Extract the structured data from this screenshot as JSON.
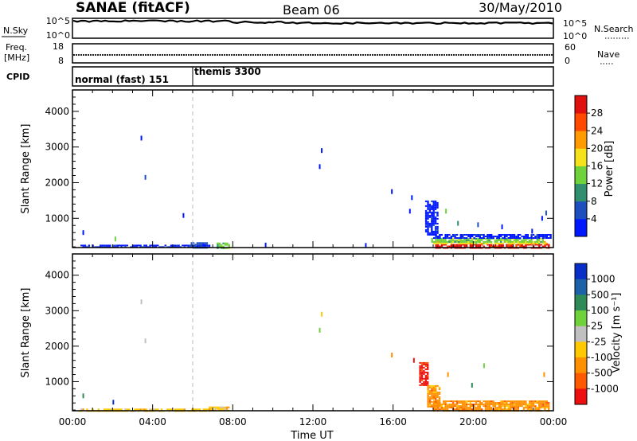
{
  "header": {
    "station": "SANAE (fitACF)",
    "beam": "Beam 06",
    "date": "30/May/2010"
  },
  "panels": {
    "noise": {
      "left_label": "N.Sky",
      "left_ticks": [
        "10^5",
        "10^0"
      ],
      "right_label": "N.Search",
      "right_ticks": [
        "10^5",
        "10^0"
      ]
    },
    "freq": {
      "left_label_1": "Freq.",
      "left_label_2": "[MHz]",
      "left_ticks": [
        "18",
        "8"
      ],
      "right_label": "Nave",
      "right_ticks": [
        "60",
        "0"
      ]
    },
    "cpid": {
      "label": "CPID",
      "segments": [
        {
          "start": 0.0,
          "name": "normal (fast) 151"
        },
        {
          "start": 6.0,
          "name": "themis 3300"
        }
      ]
    }
  },
  "chart_data": [
    {
      "type": "heatmap",
      "panel": "power",
      "ylabel": "Slant Range [km]",
      "xlabel": "",
      "xlim": [
        0,
        24
      ],
      "ylim": [
        180,
        4600
      ],
      "y_ticks": [
        "1000",
        "2000",
        "3000",
        "4000"
      ],
      "colorbar": {
        "label": "Power [dB]",
        "ticks": [
          "4",
          "8",
          "12",
          "16",
          "20",
          "24",
          "28"
        ],
        "colors": [
          "#0018ff",
          "#1f4fbf",
          "#2f8f6f",
          "#6fd23a",
          "#f5e21a",
          "#ff9a00",
          "#ff4a00",
          "#e01010"
        ]
      },
      "regions": [
        {
          "x0": 18.1,
          "x1": 23.8,
          "y0": 180,
          "y1": 280,
          "level": 7
        },
        {
          "x0": 18.0,
          "x1": 23.7,
          "y0": 280,
          "y1": 360,
          "level": 4
        },
        {
          "x0": 17.9,
          "x1": 23.5,
          "y0": 360,
          "y1": 450,
          "level": 3
        },
        {
          "x0": 18.0,
          "x1": 23.9,
          "y0": 450,
          "y1": 560,
          "level": 0
        },
        {
          "x0": 17.6,
          "x1": 18.2,
          "y0": 560,
          "y1": 1500,
          "level": 0
        },
        {
          "x0": 0.3,
          "x1": 6.8,
          "y0": 180,
          "y1": 260,
          "level": 0
        },
        {
          "x0": 5.9,
          "x1": 6.7,
          "y0": 180,
          "y1": 330,
          "level": 1
        },
        {
          "x0": 7.2,
          "x1": 7.8,
          "y0": 180,
          "y1": 320,
          "level": 3
        }
      ],
      "points": [
        [
          0.5,
          600,
          0
        ],
        [
          2.1,
          420,
          3
        ],
        [
          3.4,
          3250,
          0
        ],
        [
          3.6,
          2150,
          1
        ],
        [
          5.5,
          1080,
          0
        ],
        [
          9.6,
          250,
          0
        ],
        [
          12.4,
          2900,
          0
        ],
        [
          12.3,
          2450,
          0
        ],
        [
          14.6,
          240,
          0
        ],
        [
          15.9,
          1750,
          0
        ],
        [
          16.9,
          1580,
          0
        ],
        [
          16.8,
          1200,
          0
        ],
        [
          18.6,
          1200,
          3
        ],
        [
          19.2,
          860,
          2
        ],
        [
          20.2,
          820,
          1
        ],
        [
          21.4,
          760,
          0
        ],
        [
          22.9,
          640,
          0
        ],
        [
          23.4,
          1000,
          0
        ],
        [
          23.6,
          1150,
          1
        ]
      ]
    },
    {
      "type": "heatmap",
      "panel": "velocity",
      "ylabel": "Slant Range [km]",
      "xlabel": "Time UT",
      "xlim": [
        0,
        24
      ],
      "ylim": [
        180,
        4600
      ],
      "x_ticks": [
        "00:00",
        "04:00",
        "08:00",
        "12:00",
        "16:00",
        "20:00",
        "00:00"
      ],
      "y_ticks": [
        "1000",
        "2000",
        "3000",
        "4000"
      ],
      "colorbar": {
        "label": "Velocity [m s⁻¹]",
        "ticks": [
          "1000",
          "500",
          "100",
          "25",
          "-25",
          "-100",
          "-500",
          "-1000"
        ],
        "colors": [
          "#0a2fc8",
          "#1d62a8",
          "#2e8b57",
          "#6fd23a",
          "#c0c0c0",
          "#ffc800",
          "#ff9000",
          "#ff5a00",
          "#ee1010"
        ]
      },
      "regions": [
        {
          "x0": 18.0,
          "x1": 23.8,
          "y0": 180,
          "y1": 470,
          "level": 6
        },
        {
          "x0": 17.7,
          "x1": 18.3,
          "y0": 300,
          "y1": 900,
          "level": 6
        },
        {
          "x0": 17.3,
          "x1": 17.7,
          "y0": 900,
          "y1": 1550,
          "level": 8
        },
        {
          "x0": 6.8,
          "x1": 7.8,
          "y0": 180,
          "y1": 300,
          "level": 5
        },
        {
          "x0": 0.3,
          "x1": 6.8,
          "y0": 180,
          "y1": 240,
          "level": 5
        }
      ],
      "points": [
        [
          0.5,
          600,
          2
        ],
        [
          2.0,
          420,
          0
        ],
        [
          3.4,
          3250,
          4
        ],
        [
          3.6,
          2150,
          4
        ],
        [
          12.4,
          2900,
          5
        ],
        [
          12.3,
          2450,
          3
        ],
        [
          15.9,
          1750,
          6
        ],
        [
          17.0,
          1600,
          8
        ],
        [
          18.7,
          1200,
          6
        ],
        [
          19.9,
          900,
          2
        ],
        [
          20.5,
          1450,
          3
        ],
        [
          23.5,
          1200,
          6
        ]
      ]
    }
  ]
}
